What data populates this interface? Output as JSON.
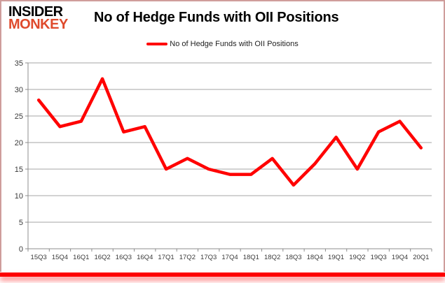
{
  "logo": {
    "line1": "INSIDER",
    "line2": "MONKEY"
  },
  "header": {
    "title": "No of Hedge Funds with OII Positions"
  },
  "legend": {
    "label": "No of Hedge Funds with OII Positions"
  },
  "colors": {
    "line": "#ff0000",
    "grid": "#a6a6a6",
    "axis": "#8c8c8c",
    "tick_label": "#3a3a3a",
    "logo_accent": "#df4a2c",
    "frame_border": "#cf9d9b",
    "bottom_bar": "#fe0000"
  },
  "chart_data": {
    "type": "line",
    "title": "No of Hedge Funds with OII Positions",
    "series_name": "No of Hedge Funds with OII Positions",
    "categories": [
      "15Q3",
      "15Q4",
      "16Q1",
      "16Q2",
      "16Q3",
      "16Q4",
      "17Q1",
      "17Q2",
      "17Q3",
      "17Q4",
      "18Q1",
      "18Q2",
      "18Q3",
      "18Q4",
      "19Q1",
      "19Q2",
      "19Q3",
      "19Q4",
      "20Q1"
    ],
    "values": [
      28,
      23,
      24,
      32,
      22,
      23,
      15,
      17,
      15,
      14,
      14,
      17,
      12,
      16,
      21,
      15,
      22,
      24,
      19
    ],
    "yticks": [
      0,
      5,
      10,
      15,
      20,
      25,
      30,
      35
    ],
    "ylim": [
      0,
      35
    ],
    "xlabel": "",
    "ylabel": "",
    "grid": true,
    "legend_position": "top-center"
  }
}
